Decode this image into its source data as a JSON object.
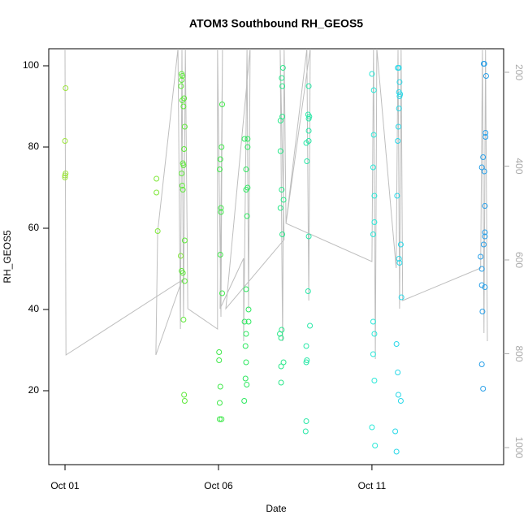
{
  "chart_data": {
    "type": "scatter",
    "title": "ATOM3 Southbound RH_GEOS5",
    "x_label": "Date",
    "y_label": "RH_GEOS5",
    "xlim": [
      -0.53,
      14.29
    ],
    "xticks": [
      {
        "value": 0,
        "label": "Oct 01"
      },
      {
        "value": 5,
        "label": "Oct 06"
      },
      {
        "value": 10,
        "label": "Oct 11"
      }
    ],
    "ylim": [
      1.8,
      104.2
    ],
    "yticks": [
      20,
      40,
      60,
      80,
      100
    ],
    "y2lim": [
      1036.4,
      149.8
    ],
    "y2ticks": [
      200,
      400,
      600,
      800,
      1000
    ],
    "series": [
      {
        "color": "#9be33a",
        "x": [
          0.02,
          0.0,
          0.02,
          0.0,
          0.0
        ],
        "values": [
          94.5,
          81.5,
          73.5,
          73,
          72.5
        ]
      },
      {
        "color": "#80e83a",
        "x": [
          2.98,
          2.98,
          3.02,
          3.77
        ],
        "values": [
          72.2,
          68.8,
          59.3,
          53.2
        ]
      },
      {
        "color": "#5ee83a",
        "x": [
          3.8,
          3.82,
          3.8,
          3.78,
          3.82,
          3.88,
          3.86,
          3.9,
          3.88,
          3.84,
          3.86,
          3.8,
          3.82,
          3.84,
          3.9,
          3.8,
          3.84,
          3.9,
          3.86,
          3.88,
          3.9
        ],
        "values": [
          98,
          97.5,
          96.5,
          95,
          91.5,
          92,
          90,
          85,
          79.5,
          76,
          75.5,
          73.5,
          70.5,
          69.5,
          57,
          49.5,
          49,
          47,
          37.5,
          19,
          17.5
        ]
      },
      {
        "color": "#3fe84a",
        "x": [
          5.12,
          5.1,
          5.06,
          5.04,
          5.08,
          5.08,
          5.06,
          5.12,
          5.02,
          5.02,
          5.06,
          5.04,
          5.04,
          5.1
        ],
        "values": [
          90.5,
          80,
          77,
          74.5,
          65,
          64,
          53.5,
          44,
          29.5,
          27.5,
          21,
          17,
          13,
          13
        ]
      },
      {
        "color": "#2ee860",
        "x": [
          5.85,
          5.95,
          5.95,
          5.9,
          5.95,
          5.9,
          5.93,
          5.9,
          5.98,
          5.85,
          5.98,
          5.9,
          5.88,
          5.9,
          5.88,
          5.92,
          5.84
        ],
        "values": [
          82,
          82,
          80,
          74.5,
          70,
          69.5,
          63,
          45,
          40,
          37,
          37,
          34,
          31,
          27,
          23,
          21.5,
          17.5
        ]
      },
      {
        "color": "#2ae88a",
        "x": [
          7.1,
          7.06,
          7.08,
          7.08,
          7.02,
          7.02,
          7.06,
          7.12,
          7.02,
          7.08,
          7.06,
          7.0,
          7.04,
          7.12,
          7.04,
          7.04
        ],
        "values": [
          99.5,
          97,
          95,
          87.5,
          86.5,
          79,
          69.5,
          67,
          65,
          58.5,
          35,
          34,
          33,
          27,
          26,
          22
        ]
      },
      {
        "color": "#2ae8a8",
        "x": [
          7.94,
          7.92,
          7.96,
          7.94,
          7.94,
          7.94,
          7.86,
          7.88,
          7.94,
          7.92,
          7.98,
          7.86,
          7.88,
          7.86,
          7.86,
          7.84
        ],
        "values": [
          95,
          88,
          87.5,
          87,
          84,
          81.5,
          81,
          76.5,
          58,
          44.5,
          36,
          31,
          27.5,
          27,
          12.5,
          10
        ]
      },
      {
        "color": "#2ae8d8",
        "x": [
          10.0,
          10.06,
          10.06,
          10.04,
          10.08,
          10.08,
          10.04,
          10.04,
          10.08,
          10.04,
          10.08,
          10.0,
          10.1
        ],
        "values": [
          98,
          94,
          83,
          75,
          68,
          61.5,
          58.5,
          37,
          34,
          29,
          22.5,
          11,
          6.5
        ]
      },
      {
        "color": "#2ad8e8",
        "x": [
          10.84,
          10.88,
          10.9,
          10.88,
          10.92,
          10.9,
          10.88,
          10.86,
          10.84,
          10.82,
          10.94,
          10.88,
          10.9,
          10.96,
          10.8,
          10.84,
          10.86,
          10.94,
          10.76,
          10.8
        ],
        "values": [
          99.5,
          99.5,
          96,
          93.5,
          93,
          92.5,
          89.5,
          85,
          81.5,
          68,
          56,
          52.5,
          51.5,
          43,
          31.5,
          24.5,
          19,
          17.5,
          10,
          5
        ]
      },
      {
        "color": "#2aa0e8",
        "x": [
          13.64,
          13.66,
          13.72,
          13.7,
          13.7,
          13.62,
          13.58,
          13.66,
          13.68,
          13.68,
          13.68,
          13.64,
          13.54,
          13.58,
          13.58,
          13.68,
          13.6,
          13.58,
          13.62
        ],
        "values": [
          100.5,
          100.5,
          97.5,
          83.5,
          82.5,
          77.5,
          75,
          74,
          65.5,
          59,
          58,
          56,
          53,
          50,
          46,
          45.5,
          39.5,
          26.5,
          20.5
        ]
      },
      {
        "type": "line",
        "axis": "y2",
        "color": "#bebebe",
        "x": [
          0,
          0.03,
          3.81,
          2.96,
          3.02,
          3.68,
          3.76,
          3.81,
          3.86,
          3.92,
          4.0,
          4.97,
          4.97,
          5.08,
          5.13,
          5.05,
          5.82,
          5.82,
          5.93,
          5.98,
          6.03,
          5.24,
          7.14,
          7.01,
          7.09,
          7.14,
          7.2,
          7.88,
          7.94,
          7.99,
          7.2,
          10.0,
          10.05,
          10.11,
          10.16,
          10.79,
          10.85,
          10.9,
          10.95,
          11.0,
          13.54,
          13.6,
          13.65,
          13.7,
          13.76
        ],
        "values": [
          150,
          802.6,
          643.3,
          802.6,
          539.4,
          150,
          747.2,
          150,
          721.2,
          150,
          703.9,
          747.2,
          150,
          721.2,
          150,
          703.9,
          596.5,
          773.2,
          150,
          703.9,
          150,
          703.9,
          556.7,
          150,
          773.2,
          150,
          522.1,
          150,
          686.6,
          150,
          522.1,
          603.5,
          150,
          811.3,
          150,
          617.3,
          150,
          703.9,
          150,
          686.6,
          617.3,
          150,
          755.9,
          150,
          773.2
        ]
      }
    ]
  }
}
